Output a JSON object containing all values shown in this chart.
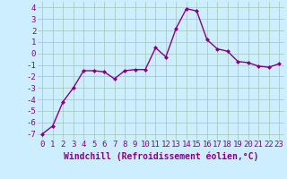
{
  "x": [
    0,
    1,
    2,
    3,
    4,
    5,
    6,
    7,
    8,
    9,
    10,
    11,
    12,
    13,
    14,
    15,
    16,
    17,
    18,
    19,
    20,
    21,
    22,
    23
  ],
  "y": [
    -7.0,
    -6.3,
    -4.2,
    -3.0,
    -1.5,
    -1.5,
    -1.6,
    -2.2,
    -1.5,
    -1.4,
    -1.4,
    0.5,
    -0.3,
    2.2,
    3.9,
    3.7,
    1.2,
    0.4,
    0.2,
    -0.7,
    -0.8,
    -1.1,
    -1.2,
    -0.9
  ],
  "line_color": "#880088",
  "marker": "D",
  "markersize": 2.0,
  "linewidth": 1.0,
  "bg_color": "#cceeff",
  "grid_color": "#aaccbb",
  "xlabel": "Windchill (Refroidissement éolien,°C)",
  "xlim": [
    -0.5,
    23.5
  ],
  "ylim": [
    -7.5,
    4.5
  ],
  "xticks": [
    0,
    1,
    2,
    3,
    4,
    5,
    6,
    7,
    8,
    9,
    10,
    11,
    12,
    13,
    14,
    15,
    16,
    17,
    18,
    19,
    20,
    21,
    22,
    23
  ],
  "yticks": [
    -7,
    -6,
    -5,
    -4,
    -3,
    -2,
    -1,
    0,
    1,
    2,
    3,
    4
  ],
  "tick_fontsize": 6.5,
  "xlabel_fontsize": 7.0
}
